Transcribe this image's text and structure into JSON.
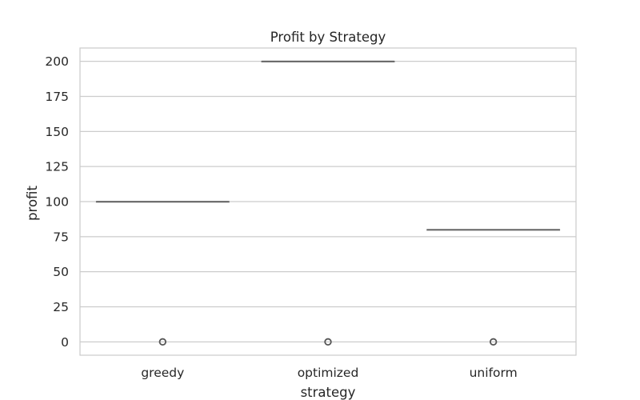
{
  "chart_data": {
    "type": "box",
    "title": "Profit by Strategy",
    "xlabel": "strategy",
    "ylabel": "profit",
    "ylim": [
      -9.5,
      209.5
    ],
    "yticks": [
      "0",
      "25",
      "50",
      "75",
      "100",
      "125",
      "150",
      "175",
      "200"
    ],
    "grid": true,
    "categories": [
      "greedy",
      "optimized",
      "uniform"
    ],
    "boxes": [
      {
        "category": "greedy",
        "q1": 100,
        "median": 100,
        "q3": 100,
        "whisker_low": 100,
        "whisker_high": 100,
        "outliers": [
          0
        ]
      },
      {
        "category": "optimized",
        "q1": 200,
        "median": 200,
        "q3": 200,
        "whisker_low": 200,
        "whisker_high": 200,
        "outliers": [
          0
        ]
      },
      {
        "category": "uniform",
        "q1": 80,
        "median": 80,
        "q3": 80,
        "whisker_low": 80,
        "whisker_high": 80,
        "outliers": [
          0
        ]
      }
    ],
    "colors": {
      "grid": "#cccccc",
      "frame": "#cccccc",
      "box_line": "#666666",
      "outlier_edge": "#555555"
    }
  }
}
